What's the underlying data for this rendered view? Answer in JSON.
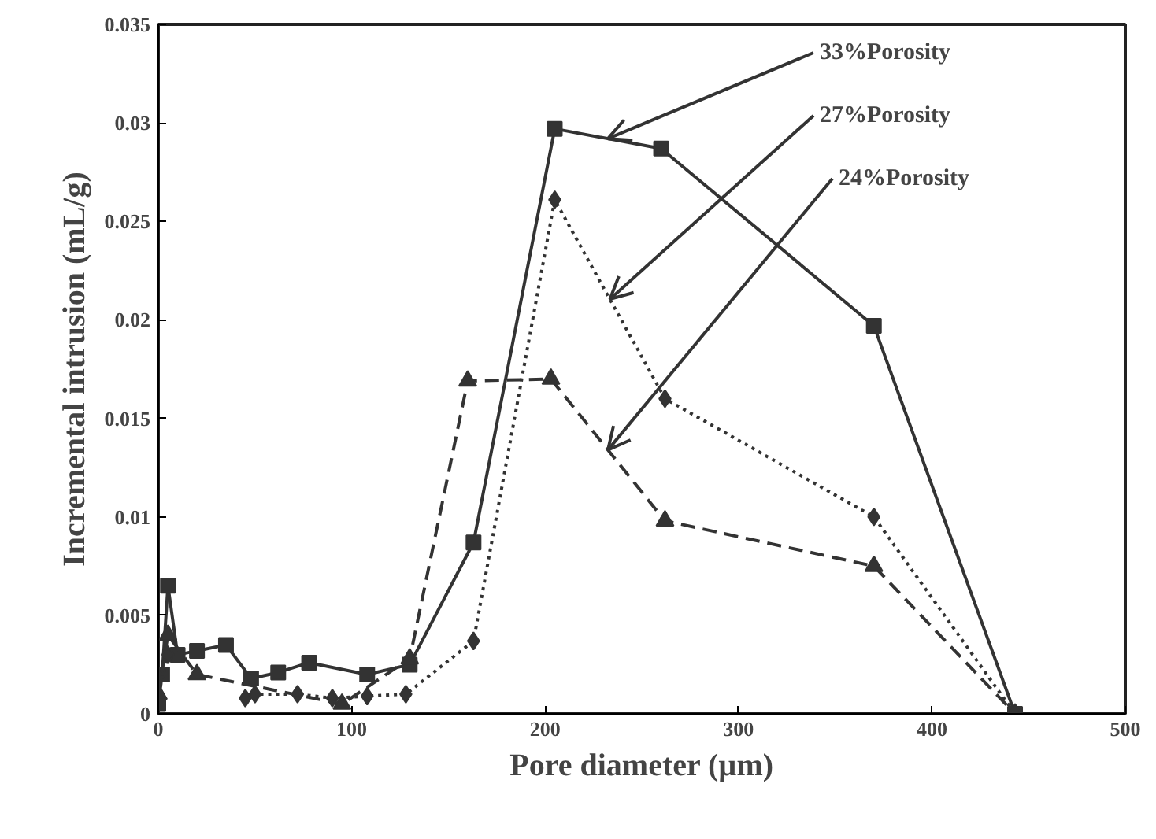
{
  "chart_data": {
    "type": "line",
    "xlabel": "Pore diameter (µm)",
    "ylabel": "Incremental intrusion (mL/g)",
    "xlim": [
      0,
      500
    ],
    "ylim": [
      0,
      0.035
    ],
    "xticks": [
      0,
      100,
      200,
      300,
      400,
      500
    ],
    "yticks": [
      0,
      0.005,
      0.01,
      0.015,
      0.02,
      0.025,
      0.03,
      0.035
    ],
    "grid": false,
    "series": [
      {
        "name": "33%Porosity",
        "color": "#333333",
        "marker": "square",
        "line_style": "solid",
        "x": [
          0,
          2,
          5,
          10,
          20,
          35,
          48,
          62,
          78,
          108,
          130,
          163,
          205,
          260,
          370,
          443
        ],
        "values": [
          0.0005,
          0.002,
          0.0065,
          0.003,
          0.0032,
          0.0035,
          0.0018,
          0.0021,
          0.0026,
          0.002,
          0.0025,
          0.0087,
          0.0297,
          0.0287,
          0.0197,
          0
        ]
      },
      {
        "name": "27%Porosity",
        "color": "#333333",
        "marker": "diamond",
        "line_style": "dotted",
        "x": [
          0,
          5,
          20,
          45,
          50,
          72,
          90,
          108,
          128,
          163,
          205,
          262,
          370,
          443
        ],
        "values": [
          0.001,
          0.003,
          null,
          0.0008,
          0.001,
          0.001,
          0.0008,
          0.0009,
          0.001,
          0.0037,
          0.0261,
          0.016,
          0.01,
          0
        ]
      },
      {
        "name": "24%Porosity",
        "color": "#333333",
        "marker": "triangle",
        "line_style": "dashed",
        "x": [
          0,
          5,
          20,
          95,
          130,
          160,
          203,
          262,
          370,
          443
        ],
        "values": [
          0.001,
          0.004,
          0.002,
          0.0005,
          0.0028,
          0.0169,
          0.017,
          0.0098,
          0.0075,
          0
        ]
      }
    ]
  }
}
